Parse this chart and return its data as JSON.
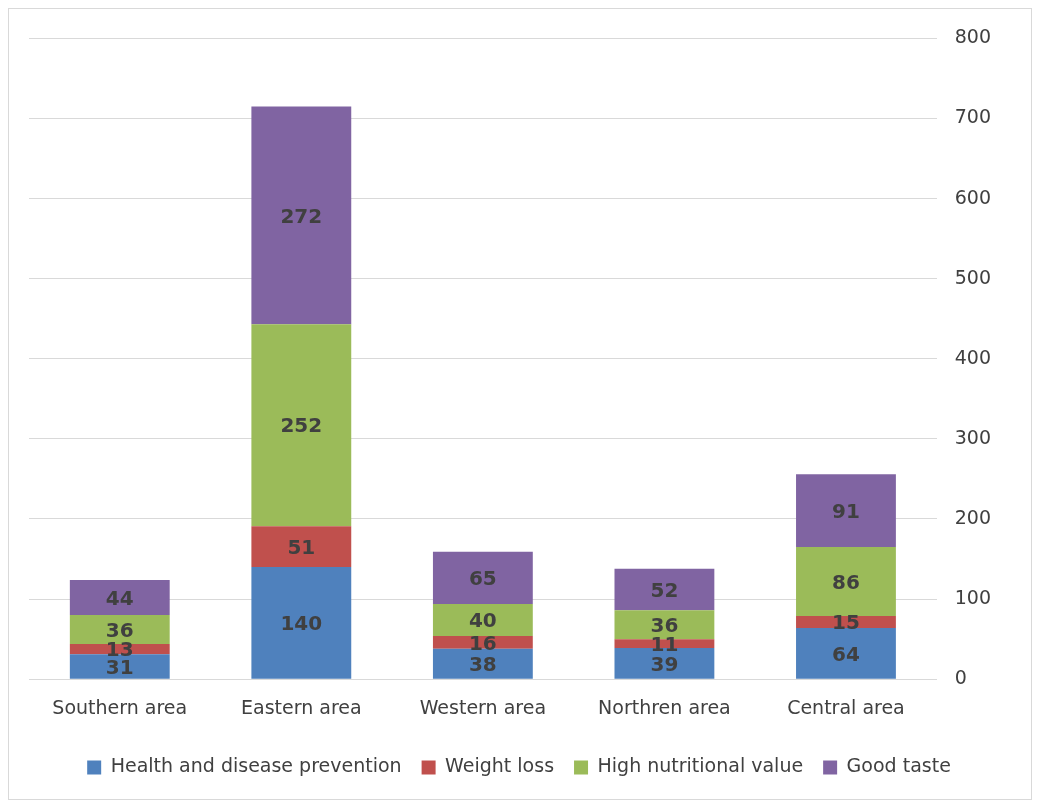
{
  "chart_data": {
    "type": "bar",
    "stacked": true,
    "categories": [
      "Southern area",
      "Eastern area",
      "Western area",
      "Northren area",
      "Central area"
    ],
    "series": [
      {
        "name": "Health and disease prevention",
        "color": "#4f81bd",
        "values": [
          31,
          140,
          38,
          39,
          64
        ]
      },
      {
        "name": "Weight loss",
        "color": "#c0504d",
        "values": [
          13,
          51,
          16,
          11,
          15
        ]
      },
      {
        "name": "High nutritional value",
        "color": "#9bbb59",
        "values": [
          36,
          252,
          40,
          36,
          86
        ]
      },
      {
        "name": "Good taste",
        "color": "#8064a2",
        "values": [
          44,
          272,
          65,
          52,
          91
        ]
      }
    ],
    "ylim": [
      0,
      800
    ],
    "yticks": [
      0,
      100,
      200,
      300,
      400,
      500,
      600,
      700,
      800
    ],
    "grid": "y",
    "legend": "bottom",
    "data_labels": true
  }
}
